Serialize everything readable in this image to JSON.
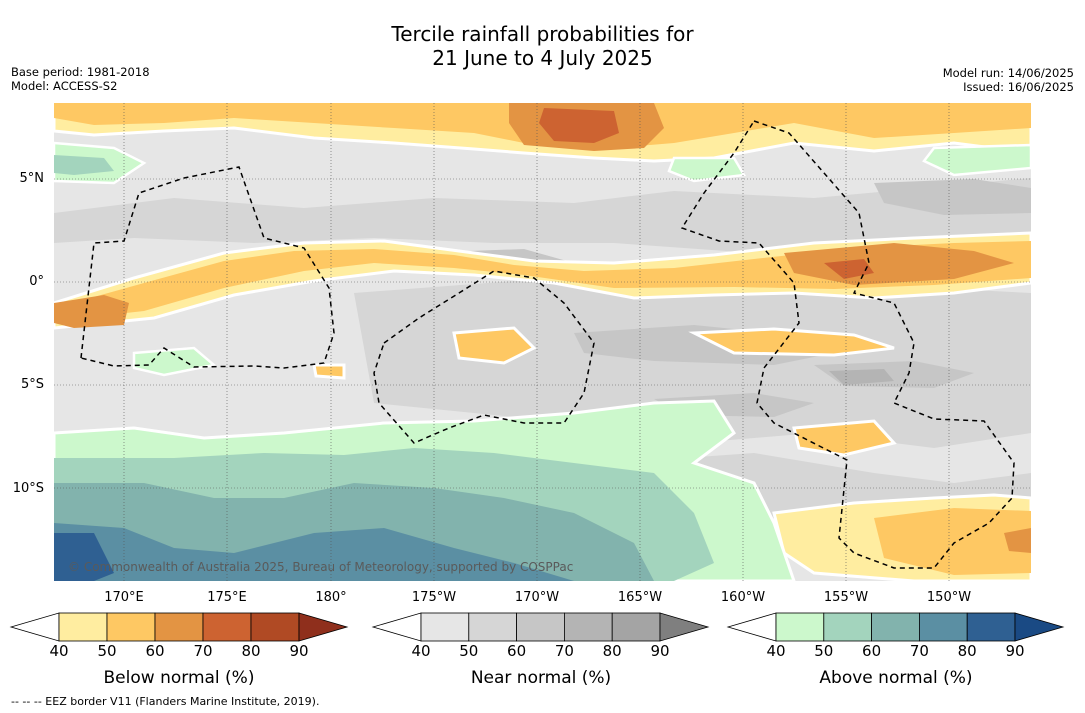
{
  "title": {
    "line1": "Tercile rainfall probabilities for",
    "line2": "21 June to 4 July 2025"
  },
  "meta_left": {
    "base_period": "Base period: 1981-2018",
    "model": "Model: ACCESS-S2"
  },
  "meta_right": {
    "model_run": "Model run: 14/06/2025",
    "issued": "Issued: 16/06/2025"
  },
  "map": {
    "latitude_labels": [
      "5°N",
      "0°",
      "5°S",
      "10°S"
    ],
    "longitude_labels": [
      "170°E",
      "175°E",
      "180°",
      "175°W",
      "170°W",
      "165°W",
      "160°W",
      "155°W",
      "150°W"
    ],
    "copyright": "© Commonwealth of Australia 2025, Bureau of Meteorology, supported by COSPPac",
    "lat_range": [
      -14.5,
      8.5
    ],
    "lon_range": [
      167.2,
      214.5
    ]
  },
  "colorbars": [
    {
      "label": "Below normal (%)",
      "ticks": [
        "40",
        "50",
        "60",
        "70",
        "80",
        "90"
      ],
      "colors": [
        "#ffffff",
        "#ffeda0",
        "#fec863",
        "#e39443",
        "#cd6331",
        "#b04a24",
        "#8f2f1c"
      ]
    },
    {
      "label": "Near normal (%)",
      "ticks": [
        "40",
        "50",
        "60",
        "70",
        "80",
        "90"
      ],
      "colors": [
        "#ffffff",
        "#e6e6e6",
        "#d6d6d6",
        "#c6c6c6",
        "#b4b4b4",
        "#a4a4a4",
        "#7f7f7f"
      ]
    },
    {
      "label": "Above normal (%)",
      "ticks": [
        "40",
        "50",
        "60",
        "70",
        "80",
        "90"
      ],
      "colors": [
        "#ffffff",
        "#ccf8cc",
        "#a3d4bd",
        "#82b3ad",
        "#5b8fa3",
        "#2f6092",
        "#1a4a84"
      ]
    }
  ],
  "footer": "--  --  -- EEZ border V11 (Flanders Marine Institute, 2019)."
}
